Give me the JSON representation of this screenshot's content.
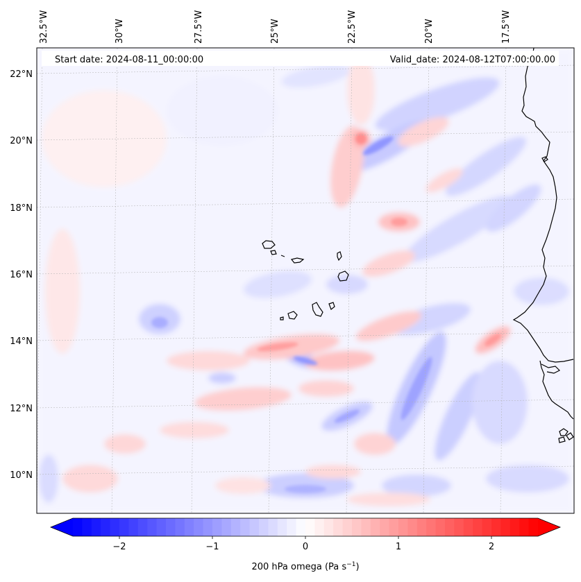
{
  "map": {
    "start_date_label": "Start date: 2024-08-11_00:00:00",
    "valid_date_label": "Valid_date: 2024-08-12T07:00:00.00",
    "lon_ticks": [
      "32.5°W",
      "30°W",
      "27.5°W",
      "25°W",
      "22.5°W",
      "20°W",
      "17.5°W"
    ],
    "lat_ticks": [
      "22°N",
      "20°N",
      "18°N",
      "16°N",
      "14°N",
      "12°N",
      "10°N"
    ],
    "colorbar": {
      "ticks": [
        "−2",
        "−1",
        "0",
        "1",
        "2"
      ],
      "tick_values": [
        -2,
        -1,
        0,
        1,
        2
      ],
      "min": -2.6,
      "max": 2.6,
      "label_main": "200 hPa omega (Pa s",
      "label_exp": "−1",
      "label_close": ")",
      "neg_color": "#0000ff",
      "zero_color": "#ffffff",
      "pos_color": "#ff0000"
    },
    "colors": {
      "coastline": "#000000",
      "grid": "#b0b0b0"
    }
  }
}
